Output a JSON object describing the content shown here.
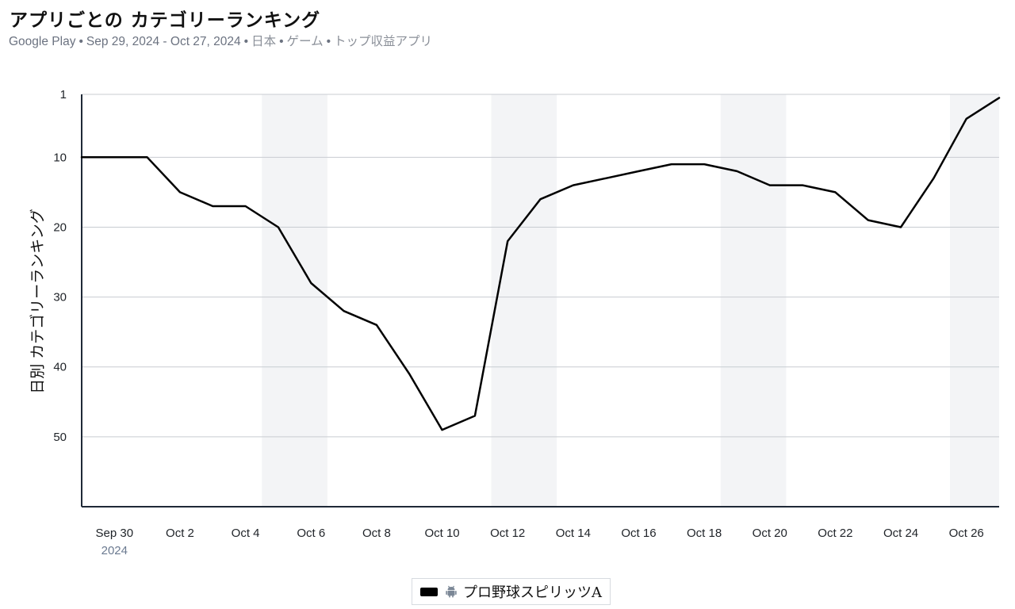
{
  "header": {
    "title": "アプリごとの カテゴリーランキング",
    "subtitle_store": "Google Play",
    "subtitle_range": "Sep 29, 2024 - Oct 27, 2024",
    "subtitle_country": "日本",
    "subtitle_category": "ゲーム",
    "subtitle_chart": "トップ収益アプリ"
  },
  "legend": {
    "icon": "android-icon",
    "label": "プロ野球スピリッツA"
  },
  "colors": {
    "line": "#000000",
    "weekend_band": "#f3f4f6",
    "grid": "#c8ccd1",
    "axis": "#1f2937",
    "year_label": "#6b7a90"
  },
  "chart_data": {
    "type": "line",
    "title": "アプリごとの カテゴリーランキング",
    "ylabel": "日別 カテゴリーランキング",
    "xlabel": "",
    "y_reversed": true,
    "ylim": [
      1,
      60
    ],
    "y_ticks": [
      1,
      10,
      20,
      30,
      40,
      50
    ],
    "x": [
      "2024-09-29",
      "2024-09-30",
      "2024-10-01",
      "2024-10-02",
      "2024-10-03",
      "2024-10-04",
      "2024-10-05",
      "2024-10-06",
      "2024-10-07",
      "2024-10-08",
      "2024-10-09",
      "2024-10-10",
      "2024-10-11",
      "2024-10-12",
      "2024-10-13",
      "2024-10-14",
      "2024-10-15",
      "2024-10-16",
      "2024-10-17",
      "2024-10-18",
      "2024-10-19",
      "2024-10-20",
      "2024-10-21",
      "2024-10-22",
      "2024-10-23",
      "2024-10-24",
      "2024-10-25",
      "2024-10-26",
      "2024-10-27"
    ],
    "x_tick_labels": [
      "Sep 30",
      "Oct 2",
      "Oct 4",
      "Oct 6",
      "Oct 8",
      "Oct 10",
      "Oct 12",
      "Oct 14",
      "Oct 16",
      "Oct 18",
      "Oct 20",
      "Oct 22",
      "Oct 24",
      "Oct 26"
    ],
    "x_tick_dates": [
      "2024-09-30",
      "2024-10-02",
      "2024-10-04",
      "2024-10-06",
      "2024-10-08",
      "2024-10-10",
      "2024-10-12",
      "2024-10-14",
      "2024-10-16",
      "2024-10-18",
      "2024-10-20",
      "2024-10-22",
      "2024-10-24",
      "2024-10-26"
    ],
    "year_label": "2024",
    "weekend_bands": [
      [
        "2024-10-05",
        "2024-10-06"
      ],
      [
        "2024-10-12",
        "2024-10-13"
      ],
      [
        "2024-10-19",
        "2024-10-20"
      ],
      [
        "2024-10-26",
        "2024-10-27"
      ]
    ],
    "series": [
      {
        "name": "プロ野球スピリッツA",
        "values": [
          10,
          10,
          10,
          15,
          17,
          17,
          20,
          28,
          32,
          34,
          41,
          49,
          47,
          22,
          16,
          14,
          13,
          12,
          11,
          11,
          12,
          14,
          14,
          15,
          19,
          20,
          13,
          4.5,
          1.5
        ]
      }
    ],
    "grid": true,
    "legend_position": "bottom-center"
  }
}
